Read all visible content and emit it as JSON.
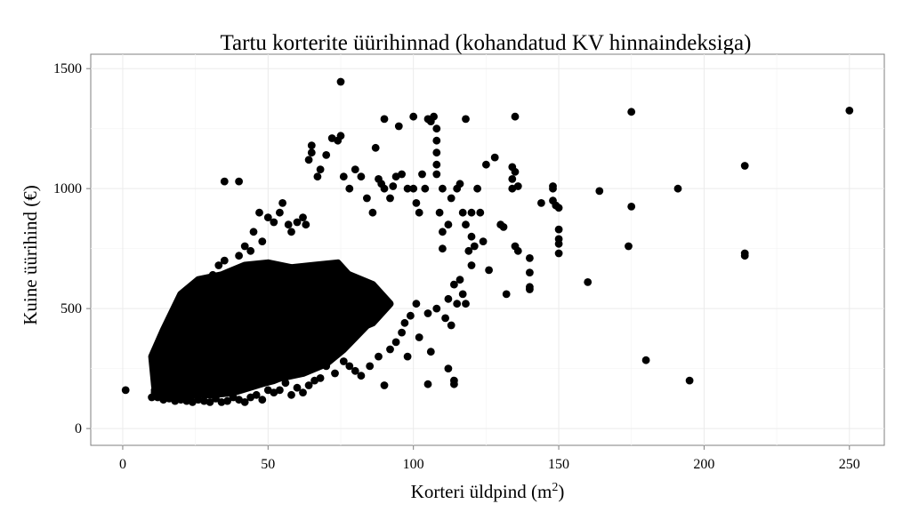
{
  "chart_data": {
    "type": "scatter",
    "title": "Tartu korterite üürihinnad (kohandatud KV hinnaindeksiga)",
    "xlabel": "Korteri üldpind (m",
    "xlabel_sup": "2",
    "xlabel_end": ")",
    "ylabel": "Kuine üürihind (€)",
    "xlim": [
      -11,
      262
    ],
    "ylim": [
      -70,
      1560
    ],
    "x_ticks": [
      0,
      50,
      100,
      150,
      200,
      250
    ],
    "x_tick_labels": [
      "0",
      "50",
      "100",
      "150",
      "200",
      "250"
    ],
    "y_ticks": [
      0,
      500,
      1000,
      1500
    ],
    "y_tick_labels": [
      "0",
      "500",
      "1000",
      "1500"
    ],
    "grid": true,
    "legend": "none",
    "point_color": "#000000",
    "background": "#ffffff",
    "grid_color": "#ebebeb",
    "series": [
      {
        "points": [
          [
            1,
            160
          ],
          [
            10,
            130
          ],
          [
            11,
            160
          ],
          [
            12,
            180
          ],
          [
            12,
            270
          ],
          [
            13,
            300
          ],
          [
            14,
            250
          ],
          [
            15,
            200
          ],
          [
            16,
            280
          ],
          [
            18,
            330
          ],
          [
            20,
            380
          ],
          [
            20,
            470
          ],
          [
            21,
            510
          ],
          [
            22,
            300
          ],
          [
            24,
            430
          ],
          [
            25,
            460
          ],
          [
            26,
            540
          ],
          [
            27,
            560
          ],
          [
            28,
            600
          ],
          [
            30,
            520
          ],
          [
            31,
            640
          ],
          [
            32,
            580
          ],
          [
            33,
            680
          ],
          [
            35,
            700
          ],
          [
            36,
            620
          ],
          [
            38,
            640
          ],
          [
            40,
            720
          ],
          [
            40,
            1030
          ],
          [
            35,
            1030
          ],
          [
            42,
            760
          ],
          [
            44,
            740
          ],
          [
            45,
            820
          ],
          [
            47,
            900
          ],
          [
            48,
            780
          ],
          [
            50,
            880
          ],
          [
            52,
            860
          ],
          [
            54,
            900
          ],
          [
            55,
            940
          ],
          [
            57,
            850
          ],
          [
            58,
            820
          ],
          [
            60,
            860
          ],
          [
            62,
            880
          ],
          [
            63,
            850
          ],
          [
            64,
            1120
          ],
          [
            65,
            1180
          ],
          [
            65,
            1150
          ],
          [
            67,
            1050
          ],
          [
            68,
            1080
          ],
          [
            70,
            1140
          ],
          [
            72,
            1210
          ],
          [
            74,
            1200
          ],
          [
            75,
            1220
          ],
          [
            75,
            1445
          ],
          [
            76,
            1050
          ],
          [
            78,
            1000
          ],
          [
            80,
            1080
          ],
          [
            82,
            1050
          ],
          [
            84,
            960
          ],
          [
            86,
            900
          ],
          [
            87,
            1170
          ],
          [
            88,
            1040
          ],
          [
            89,
            1020
          ],
          [
            90,
            1290
          ],
          [
            90,
            1000
          ],
          [
            92,
            960
          ],
          [
            93,
            1010
          ],
          [
            94,
            1050
          ],
          [
            95,
            1260
          ],
          [
            96,
            1060
          ],
          [
            98,
            1000
          ],
          [
            100,
            1300
          ],
          [
            100,
            1000
          ],
          [
            101,
            940
          ],
          [
            102,
            900
          ],
          [
            103,
            1060
          ],
          [
            104,
            1000
          ],
          [
            105,
            1290
          ],
          [
            106,
            1280
          ],
          [
            107,
            1300
          ],
          [
            108,
            1250
          ],
          [
            108,
            1200
          ],
          [
            108,
            1150
          ],
          [
            108,
            1100
          ],
          [
            108,
            1060
          ],
          [
            109,
            900
          ],
          [
            110,
            1000
          ],
          [
            110,
            820
          ],
          [
            110,
            750
          ],
          [
            112,
            850
          ],
          [
            113,
            960
          ],
          [
            115,
            1000
          ],
          [
            116,
            1020
          ],
          [
            117,
            900
          ],
          [
            118,
            1290
          ],
          [
            118,
            850
          ],
          [
            119,
            740
          ],
          [
            120,
            900
          ],
          [
            120,
            800
          ],
          [
            120,
            680
          ],
          [
            121,
            760
          ],
          [
            122,
            1000
          ],
          [
            123,
            900
          ],
          [
            124,
            780
          ],
          [
            125,
            1100
          ],
          [
            126,
            660
          ],
          [
            128,
            1130
          ],
          [
            130,
            850
          ],
          [
            131,
            840
          ],
          [
            132,
            560
          ],
          [
            134,
            1090
          ],
          [
            134,
            1040
          ],
          [
            134,
            1000
          ],
          [
            135,
            1070
          ],
          [
            135,
            1300
          ],
          [
            135,
            760
          ],
          [
            136,
            740
          ],
          [
            136,
            1010
          ],
          [
            140,
            710
          ],
          [
            140,
            650
          ],
          [
            140,
            590
          ],
          [
            140,
            580
          ],
          [
            144,
            940
          ],
          [
            148,
            1010
          ],
          [
            148,
            1000
          ],
          [
            148,
            950
          ],
          [
            149,
            930
          ],
          [
            150,
            920
          ],
          [
            150,
            830
          ],
          [
            150,
            790
          ],
          [
            150,
            770
          ],
          [
            150,
            730
          ],
          [
            160,
            610
          ],
          [
            164,
            990
          ],
          [
            174,
            760
          ],
          [
            175,
            925
          ],
          [
            175,
            1320
          ],
          [
            180,
            285
          ],
          [
            191,
            1000
          ],
          [
            195,
            200
          ],
          [
            214,
            1095
          ],
          [
            214,
            730
          ],
          [
            214,
            720
          ],
          [
            250,
            1325
          ],
          [
            90,
            180
          ],
          [
            105,
            185
          ],
          [
            112,
            250
          ],
          [
            114,
            200
          ],
          [
            114,
            185
          ],
          [
            106,
            320
          ],
          [
            98,
            300
          ],
          [
            102,
            380
          ],
          [
            96,
            400
          ],
          [
            97,
            440
          ],
          [
            99,
            470
          ],
          [
            101,
            520
          ],
          [
            105,
            480
          ],
          [
            108,
            500
          ],
          [
            111,
            460
          ],
          [
            112,
            540
          ],
          [
            113,
            430
          ],
          [
            114,
            600
          ],
          [
            115,
            520
          ],
          [
            116,
            620
          ],
          [
            117,
            560
          ],
          [
            118,
            520
          ],
          [
            85,
            260
          ],
          [
            88,
            300
          ],
          [
            92,
            330
          ],
          [
            94,
            360
          ],
          [
            82,
            220
          ],
          [
            80,
            240
          ],
          [
            78,
            260
          ],
          [
            76,
            280
          ],
          [
            73,
            230
          ],
          [
            70,
            260
          ],
          [
            68,
            210
          ],
          [
            66,
            200
          ],
          [
            64,
            180
          ],
          [
            62,
            150
          ],
          [
            60,
            170
          ],
          [
            58,
            140
          ],
          [
            56,
            190
          ],
          [
            54,
            160
          ],
          [
            52,
            150
          ],
          [
            50,
            160
          ],
          [
            48,
            120
          ],
          [
            46,
            140
          ],
          [
            44,
            130
          ],
          [
            42,
            110
          ],
          [
            40,
            120
          ],
          [
            38,
            130
          ],
          [
            36,
            115
          ],
          [
            34,
            110
          ],
          [
            32,
            125
          ],
          [
            30,
            110
          ],
          [
            28,
            115
          ],
          [
            26,
            120
          ],
          [
            24,
            110
          ],
          [
            22,
            115
          ],
          [
            20,
            120
          ],
          [
            18,
            115
          ],
          [
            16,
            125
          ],
          [
            14,
            120
          ],
          [
            12,
            130
          ],
          [
            11,
            150
          ]
        ]
      }
    ],
    "dense_core": [
      [
        [
          10,
          300
        ],
        [
          14,
          410
        ],
        [
          20,
          560
        ],
        [
          26,
          620
        ],
        [
          34,
          640
        ],
        [
          42,
          680
        ],
        [
          50,
          690
        ],
        [
          58,
          670
        ],
        [
          66,
          680
        ],
        [
          74,
          690
        ],
        [
          80,
          610
        ],
        [
          84,
          430
        ],
        [
          76,
          330
        ],
        [
          70,
          270
        ],
        [
          62,
          230
        ],
        [
          54,
          210
        ],
        [
          46,
          180
        ],
        [
          38,
          150
        ],
        [
          30,
          140
        ],
        [
          22,
          145
        ],
        [
          16,
          160
        ],
        [
          11,
          175
        ]
      ],
      [
        [
          26,
          520
        ],
        [
          32,
          600
        ],
        [
          40,
          660
        ],
        [
          50,
          680
        ],
        [
          60,
          660
        ],
        [
          66,
          620
        ],
        [
          64,
          560
        ],
        [
          54,
          500
        ],
        [
          44,
          480
        ],
        [
          34,
          480
        ]
      ],
      [
        [
          48,
          420
        ],
        [
          58,
          560
        ],
        [
          68,
          640
        ],
        [
          76,
          650
        ],
        [
          86,
          600
        ],
        [
          92,
          520
        ],
        [
          86,
          440
        ],
        [
          74,
          380
        ],
        [
          62,
          340
        ],
        [
          52,
          330
        ]
      ],
      [
        [
          12,
          140
        ],
        [
          20,
          170
        ],
        [
          30,
          200
        ],
        [
          40,
          220
        ],
        [
          50,
          240
        ],
        [
          58,
          230
        ],
        [
          52,
          200
        ],
        [
          42,
          170
        ],
        [
          32,
          150
        ],
        [
          22,
          135
        ],
        [
          14,
          125
        ]
      ]
    ]
  }
}
